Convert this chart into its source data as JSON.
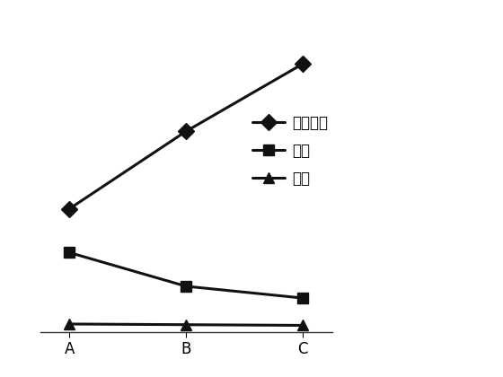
{
  "x_labels": [
    "A",
    "B",
    "C"
  ],
  "x_values": [
    0,
    1,
    2
  ],
  "series": [
    {
      "label": "钓板用量",
      "y": [
        0.35,
        0.58,
        0.78
      ],
      "marker": "D",
      "markersize": 9,
      "linewidth": 2.2,
      "color": "#111111"
    },
    {
      "label": "位移",
      "y": [
        0.22,
        0.12,
        0.085
      ],
      "marker": "s",
      "markersize": 9,
      "linewidth": 2.2,
      "color": "#111111"
    },
    {
      "label": "应力",
      "y": [
        0.008,
        0.006,
        0.004
      ],
      "marker": "^",
      "markersize": 9,
      "linewidth": 2.2,
      "color": "#111111"
    }
  ],
  "ylim": [
    -0.015,
    0.88
  ],
  "xlim": [
    -0.25,
    2.25
  ],
  "legend_fontsize": 12,
  "tick_fontsize": 12,
  "background_color": "#ffffff",
  "border_color": "#aaaaaa"
}
